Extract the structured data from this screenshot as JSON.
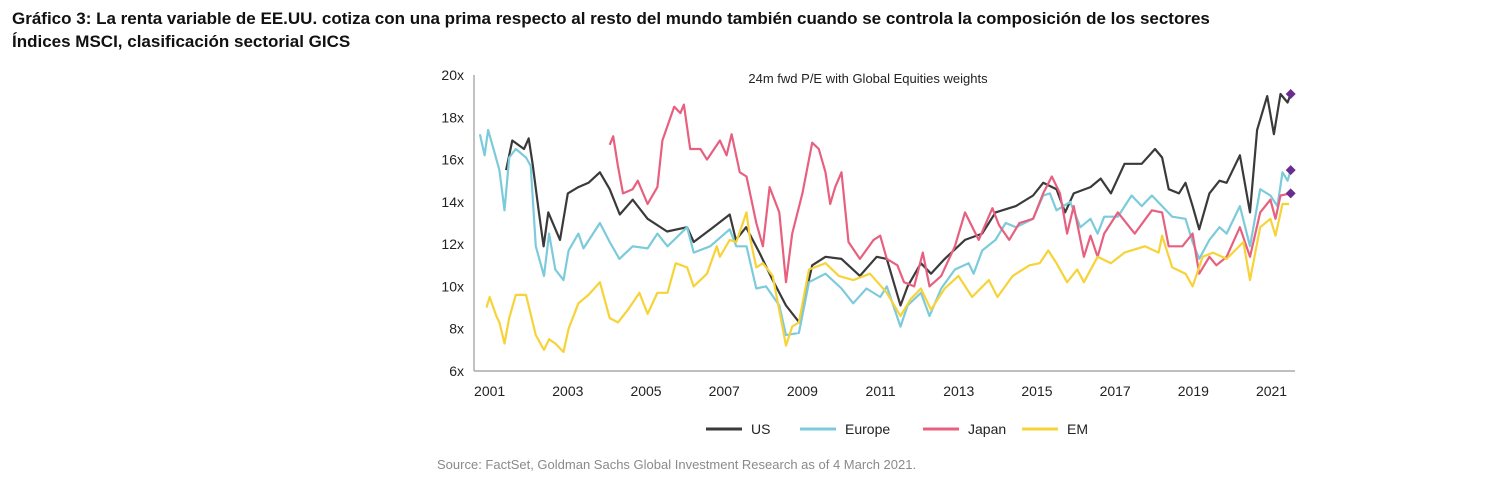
{
  "header": {
    "title": "Gráfico 3: La renta variable de EE.UU. cotiza con una prima respecto al resto del mundo también cuando se controla la composición de los sectores",
    "subtitle": "Índices MSCI, clasificación sectorial GICS"
  },
  "source": "Source: FactSet, Goldman Sachs Global Investment Research as of 4 March 2021.",
  "chart_data": {
    "type": "line",
    "title": "24m fwd P/E with Global Equities weights",
    "xlabel": "",
    "ylabel": "",
    "xlim": [
      2000.6,
      2021.6
    ],
    "ylim": [
      6,
      20
    ],
    "yticks": [
      6,
      8,
      10,
      12,
      14,
      16,
      18,
      20
    ],
    "ytick_labels": [
      "6x",
      "8x",
      "10x",
      "12x",
      "14x",
      "16x",
      "18x",
      "20x"
    ],
    "xticks": [
      2001,
      2003,
      2005,
      2007,
      2009,
      2011,
      2013,
      2015,
      2017,
      2019,
      2021
    ],
    "xtick_labels": [
      "2001",
      "2003",
      "2005",
      "2007",
      "2009",
      "2011",
      "2013",
      "2015",
      "2017",
      "2019",
      "2021"
    ],
    "grid": false,
    "legend_position": "bottom",
    "marker_color": "#6b2c91",
    "series": [
      {
        "name": "US",
        "color": "#3a3a3a",
        "x": [
          2001.42,
          2001.58,
          2001.88,
          2002.0,
          2002.1,
          2002.26,
          2002.38,
          2002.5,
          2002.8,
          2003.0,
          2003.27,
          2003.53,
          2003.82,
          2004.07,
          2004.33,
          2004.66,
          2005.04,
          2005.54,
          2006.05,
          2006.22,
          2006.72,
          2007.14,
          2007.3,
          2007.56,
          2007.9,
          2008.24,
          2008.58,
          2008.92,
          2009.25,
          2009.59,
          2010.0,
          2010.47,
          2010.9,
          2011.16,
          2011.51,
          2011.69,
          2012.03,
          2012.29,
          2012.64,
          2013.16,
          2013.6,
          2013.94,
          2014.46,
          2014.9,
          2015.16,
          2015.5,
          2015.72,
          2015.94,
          2016.37,
          2016.63,
          2016.89,
          2017.24,
          2017.68,
          2018.02,
          2018.2,
          2018.37,
          2018.63,
          2018.8,
          2018.98,
          2019.15,
          2019.41,
          2019.67,
          2019.85,
          2020.19,
          2020.45,
          2020.63,
          2020.89,
          2021.06,
          2021.23,
          2021.41,
          2021.49
        ],
        "y": [
          15.5,
          16.9,
          16.5,
          17.0,
          15.8,
          13.5,
          11.9,
          13.5,
          12.2,
          14.4,
          14.7,
          14.9,
          15.4,
          14.6,
          13.4,
          14.1,
          13.2,
          12.6,
          12.8,
          12.1,
          12.8,
          13.4,
          12.2,
          12.8,
          11.6,
          10.3,
          9.1,
          8.3,
          11.0,
          11.4,
          11.3,
          10.5,
          11.4,
          11.3,
          9.1,
          10.0,
          11.1,
          10.6,
          11.3,
          12.2,
          12.5,
          13.5,
          13.8,
          14.3,
          14.9,
          14.6,
          13.5,
          14.4,
          14.7,
          15.1,
          14.4,
          15.8,
          15.8,
          16.5,
          16.1,
          14.6,
          14.4,
          14.9,
          13.8,
          12.7,
          14.4,
          15.0,
          14.9,
          16.2,
          13.5,
          17.4,
          19.0,
          17.2,
          19.1,
          18.7,
          19.1
        ]
      },
      {
        "name": "Europe",
        "color": "#7ccbdb",
        "x": [
          2000.75,
          2000.87,
          2000.96,
          2001.13,
          2001.25,
          2001.38,
          2001.5,
          2001.67,
          2001.93,
          2002.05,
          2002.18,
          2002.39,
          2002.52,
          2002.68,
          2002.89,
          2003.02,
          2003.27,
          2003.4,
          2003.82,
          2004.07,
          2004.32,
          2004.66,
          2005.04,
          2005.29,
          2005.55,
          2006.05,
          2006.22,
          2006.64,
          2007.14,
          2007.31,
          2007.57,
          2007.82,
          2008.07,
          2008.41,
          2008.58,
          2008.91,
          2009.17,
          2009.59,
          2010.0,
          2010.3,
          2010.64,
          2010.99,
          2011.16,
          2011.51,
          2011.69,
          2012.03,
          2012.25,
          2012.55,
          2012.9,
          2013.25,
          2013.38,
          2013.6,
          2013.94,
          2014.2,
          2014.46,
          2014.9,
          2015.16,
          2015.33,
          2015.5,
          2015.85,
          2016.11,
          2016.37,
          2016.55,
          2016.72,
          2017.07,
          2017.42,
          2017.68,
          2017.94,
          2018.2,
          2018.46,
          2018.8,
          2018.98,
          2019.15,
          2019.41,
          2019.67,
          2019.85,
          2020.19,
          2020.45,
          2020.71,
          2020.97,
          2021.15,
          2021.28,
          2021.41,
          2021.49
        ],
        "y": [
          17.2,
          16.2,
          17.4,
          16.3,
          15.5,
          13.6,
          16.1,
          16.5,
          16.1,
          15.7,
          11.9,
          10.5,
          12.5,
          10.8,
          10.3,
          11.7,
          12.5,
          11.8,
          13.0,
          12.1,
          11.3,
          11.9,
          11.8,
          12.5,
          11.9,
          12.8,
          11.6,
          11.9,
          12.7,
          11.9,
          11.9,
          9.9,
          10.0,
          9.1,
          7.7,
          7.8,
          10.2,
          10.6,
          9.9,
          9.2,
          9.9,
          9.5,
          10.0,
          8.1,
          9.1,
          9.7,
          8.6,
          9.9,
          10.8,
          11.1,
          10.6,
          11.7,
          12.2,
          13.0,
          12.8,
          13.2,
          14.3,
          14.4,
          13.6,
          14.0,
          12.8,
          13.2,
          12.5,
          13.3,
          13.3,
          14.3,
          13.8,
          14.3,
          13.8,
          13.3,
          13.2,
          12.1,
          11.3,
          12.2,
          12.8,
          12.5,
          13.8,
          11.9,
          14.6,
          14.3,
          13.8,
          15.4,
          15.0,
          15.5
        ]
      },
      {
        "name": "Japan",
        "color": "#e8607f",
        "x": [
          2004.07,
          2004.16,
          2004.28,
          2004.41,
          2004.66,
          2004.79,
          2005.04,
          2005.29,
          2005.42,
          2005.72,
          2005.88,
          2005.97,
          2006.13,
          2006.39,
          2006.56,
          2006.89,
          2007.06,
          2007.19,
          2007.4,
          2007.57,
          2007.82,
          2007.99,
          2008.16,
          2008.41,
          2008.58,
          2008.74,
          2009.0,
          2009.25,
          2009.42,
          2009.59,
          2009.71,
          2009.84,
          2010.0,
          2010.18,
          2010.47,
          2010.82,
          2010.99,
          2011.16,
          2011.43,
          2011.6,
          2011.86,
          2012.08,
          2012.25,
          2012.55,
          2012.9,
          2013.16,
          2013.51,
          2013.86,
          2014.03,
          2014.29,
          2014.55,
          2014.9,
          2015.16,
          2015.38,
          2015.59,
          2015.77,
          2015.94,
          2016.2,
          2016.37,
          2016.55,
          2016.72,
          2017.07,
          2017.5,
          2017.94,
          2018.2,
          2018.37,
          2018.72,
          2018.98,
          2019.15,
          2019.41,
          2019.59,
          2019.85,
          2020.19,
          2020.45,
          2020.71,
          2020.97,
          2021.1,
          2021.23,
          2021.49
        ],
        "y": [
          16.7,
          17.1,
          15.7,
          14.4,
          14.6,
          15.0,
          13.9,
          14.7,
          16.9,
          18.5,
          18.2,
          18.6,
          16.5,
          16.5,
          16.0,
          16.9,
          16.2,
          17.2,
          15.4,
          15.2,
          13.0,
          11.9,
          14.7,
          13.5,
          10.2,
          12.5,
          14.4,
          16.8,
          16.5,
          15.4,
          13.9,
          14.7,
          15.4,
          12.1,
          11.3,
          12.2,
          12.4,
          11.3,
          11.0,
          10.2,
          10.0,
          11.6,
          10.0,
          10.5,
          11.9,
          13.5,
          12.2,
          13.7,
          12.9,
          12.2,
          13.0,
          13.2,
          14.4,
          15.2,
          14.4,
          12.5,
          13.8,
          11.4,
          12.4,
          11.4,
          12.5,
          13.5,
          12.5,
          13.6,
          13.5,
          11.9,
          11.9,
          12.5,
          10.6,
          11.4,
          11.0,
          11.4,
          12.8,
          11.4,
          13.5,
          14.1,
          13.2,
          14.3,
          14.4
        ]
      },
      {
        "name": "EM",
        "color": "#f7d33a",
        "x": [
          2000.92,
          2001.0,
          2001.17,
          2001.25,
          2001.38,
          2001.5,
          2001.67,
          2001.93,
          2002.18,
          2002.39,
          2002.52,
          2002.68,
          2002.89,
          2003.02,
          2003.27,
          2003.53,
          2003.82,
          2004.07,
          2004.28,
          2004.54,
          2004.83,
          2005.04,
          2005.29,
          2005.55,
          2005.76,
          2006.05,
          2006.22,
          2006.56,
          2006.81,
          2006.89,
          2007.14,
          2007.31,
          2007.57,
          2007.65,
          2007.82,
          2007.99,
          2008.24,
          2008.58,
          2008.74,
          2008.91,
          2009.17,
          2009.59,
          2009.93,
          2010.3,
          2010.73,
          2011.16,
          2011.51,
          2011.77,
          2012.03,
          2012.29,
          2012.64,
          2012.99,
          2013.34,
          2013.77,
          2013.99,
          2014.38,
          2014.81,
          2015.07,
          2015.29,
          2015.5,
          2015.77,
          2016.03,
          2016.2,
          2016.55,
          2016.89,
          2017.24,
          2017.76,
          2018.11,
          2018.2,
          2018.46,
          2018.8,
          2018.98,
          2019.24,
          2019.5,
          2019.85,
          2020.28,
          2020.45,
          2020.71,
          2020.97,
          2021.1,
          2021.28,
          2021.45
        ],
        "y": [
          9.0,
          9.5,
          8.6,
          8.3,
          7.3,
          8.5,
          9.6,
          9.6,
          7.7,
          7.0,
          7.5,
          7.3,
          6.9,
          8.0,
          9.2,
          9.6,
          10.2,
          8.5,
          8.3,
          8.9,
          9.7,
          8.7,
          9.7,
          9.7,
          11.1,
          10.9,
          10.0,
          10.6,
          11.9,
          11.4,
          12.2,
          12.1,
          13.5,
          12.4,
          10.9,
          11.1,
          10.5,
          7.2,
          8.1,
          8.3,
          10.8,
          11.1,
          10.5,
          10.3,
          10.6,
          9.7,
          8.6,
          9.4,
          9.9,
          8.9,
          9.9,
          10.5,
          9.5,
          10.3,
          9.5,
          10.5,
          11.0,
          11.1,
          11.7,
          11.1,
          10.2,
          10.8,
          10.2,
          11.4,
          11.1,
          11.6,
          11.9,
          11.6,
          12.4,
          10.9,
          10.6,
          10.0,
          11.4,
          11.6,
          11.3,
          12.1,
          10.3,
          12.8,
          13.2,
          12.4,
          13.9,
          13.9
        ]
      }
    ],
    "end_markers": [
      {
        "series": "US",
        "x": 2021.49,
        "y": 19.1
      },
      {
        "series": "Europe",
        "x": 2021.49,
        "y": 15.5
      },
      {
        "series": "Japan",
        "x": 2021.49,
        "y": 14.4
      }
    ]
  }
}
